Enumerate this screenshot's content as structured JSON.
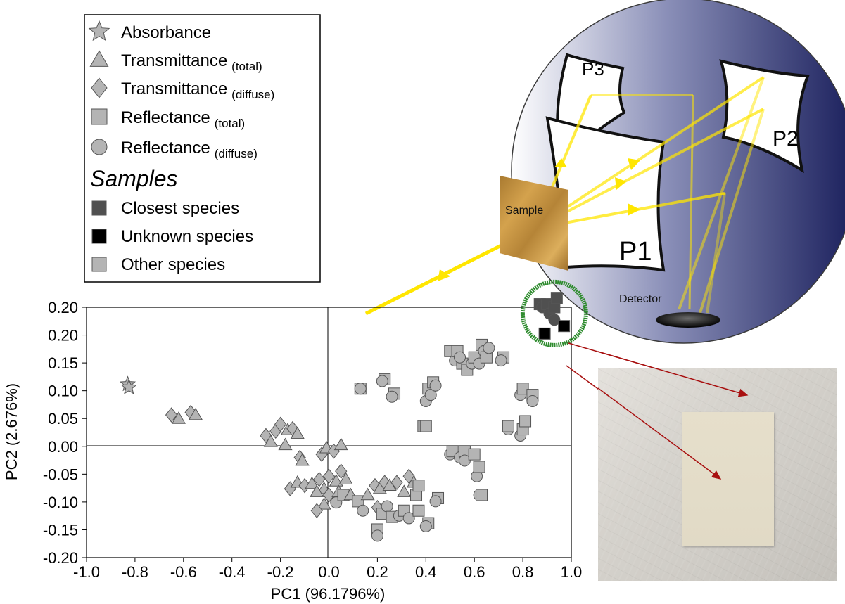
{
  "legend": {
    "techniques": [
      {
        "label": "Absorbance",
        "sub": "",
        "marker": "star"
      },
      {
        "label": "Transmittance",
        "sub": "(total)",
        "marker": "triangle"
      },
      {
        "label": "Transmittance",
        "sub": "(diffuse)",
        "marker": "diamond"
      },
      {
        "label": "Reflectance",
        "sub": "(total)",
        "marker": "square"
      },
      {
        "label": "Reflectance",
        "sub": "(diffuse)",
        "marker": "circle"
      }
    ],
    "samples_title": "Samples",
    "samples": [
      {
        "label": "Closest species",
        "color": "#505050"
      },
      {
        "label": "Unknown species",
        "color": "#000000"
      },
      {
        "label": "Other species",
        "color": "#b4b4b4"
      }
    ]
  },
  "diagram": {
    "mirror_labels": [
      "P3",
      "P2",
      "P1"
    ],
    "sample_label": "Sample",
    "detector_label": "Detector",
    "sphere_colors": [
      "#ffffff",
      "#8a8fb8",
      "#1a1f5c"
    ],
    "beam_color": "#ffe600"
  },
  "chart_data": {
    "type": "scatter",
    "xlabel": "PC1 (96.1796%)",
    "ylabel": "PC2 (2.676%)",
    "xlim": [
      -1.0,
      1.0
    ],
    "ylim": [
      -0.2,
      0.2
    ],
    "x_ticks": [
      "-1.0",
      "-0.8",
      "-0.6",
      "-0.4",
      "-0.2",
      "0.0",
      "0.2",
      "0.4",
      "0.6",
      "0.8",
      "1.0"
    ],
    "y_ticks": [
      "0.20",
      "0.20",
      "0.15",
      "0.10",
      "0.05",
      "0.00",
      "-0.05",
      "-0.10",
      "-0.15",
      "-0.20"
    ],
    "grid": false,
    "zero_lines": true,
    "highlight_circle": {
      "cx": 0.93,
      "cy": 0.19,
      "color": "#2e8b2e"
    },
    "series": [
      {
        "name": "Other species",
        "color": "#b4b4b4",
        "points": [
          {
            "x": -0.83,
            "y": 0.077,
            "m": "star"
          },
          {
            "x": -0.825,
            "y": 0.072,
            "m": "star"
          },
          {
            "x": -0.65,
            "y": 0.028,
            "m": "diamond"
          },
          {
            "x": -0.62,
            "y": 0.022,
            "m": "triangle"
          },
          {
            "x": -0.57,
            "y": 0.032,
            "m": "diamond"
          },
          {
            "x": -0.55,
            "y": 0.028,
            "m": "triangle"
          },
          {
            "x": -0.26,
            "y": -0.005,
            "m": "diamond"
          },
          {
            "x": -0.24,
            "y": -0.015,
            "m": "triangle"
          },
          {
            "x": -0.22,
            "y": 0.002,
            "m": "diamond"
          },
          {
            "x": -0.2,
            "y": 0.013,
            "m": "diamond"
          },
          {
            "x": -0.18,
            "y": -0.02,
            "m": "triangle"
          },
          {
            "x": -0.17,
            "y": 0.004,
            "m": "triangle"
          },
          {
            "x": -0.15,
            "y": 0.006,
            "m": "diamond"
          },
          {
            "x": -0.13,
            "y": -0.002,
            "m": "triangle"
          },
          {
            "x": -0.12,
            "y": -0.04,
            "m": "diamond"
          },
          {
            "x": -0.11,
            "y": -0.045,
            "m": "triangle"
          },
          {
            "x": -0.16,
            "y": -0.09,
            "m": "diamond"
          },
          {
            "x": -0.13,
            "y": -0.08,
            "m": "triangle"
          },
          {
            "x": -0.1,
            "y": -0.085,
            "m": "diamond"
          },
          {
            "x": -0.07,
            "y": -0.082,
            "m": "triangle"
          },
          {
            "x": -0.04,
            "y": -0.075,
            "m": "diamond"
          },
          {
            "x": -0.02,
            "y": -0.09,
            "m": "triangle"
          },
          {
            "x": -0.05,
            "y": -0.095,
            "m": "triangle"
          },
          {
            "x": 0.0,
            "y": -0.07,
            "m": "diamond"
          },
          {
            "x": 0.03,
            "y": -0.078,
            "m": "triangle"
          },
          {
            "x": 0.05,
            "y": -0.062,
            "m": "diamond"
          },
          {
            "x": 0.07,
            "y": -0.075,
            "m": "triangle"
          },
          {
            "x": -0.03,
            "y": -0.035,
            "m": "diamond"
          },
          {
            "x": -0.01,
            "y": -0.025,
            "m": "triangle"
          },
          {
            "x": 0.02,
            "y": -0.03,
            "m": "diamond"
          },
          {
            "x": 0.05,
            "y": -0.02,
            "m": "triangle"
          },
          {
            "x": 0.0,
            "y": -0.1,
            "m": "diamond"
          },
          {
            "x": -0.02,
            "y": -0.115,
            "m": "triangle"
          },
          {
            "x": 0.03,
            "y": -0.112,
            "m": "circle"
          },
          {
            "x": -0.05,
            "y": -0.125,
            "m": "diamond"
          },
          {
            "x": 0.04,
            "y": -0.095,
            "m": "triangle"
          },
          {
            "x": 0.06,
            "y": -0.1,
            "m": "square"
          },
          {
            "x": 0.09,
            "y": -0.1,
            "m": "triangle"
          },
          {
            "x": 0.12,
            "y": -0.11,
            "m": "square"
          },
          {
            "x": 0.14,
            "y": -0.125,
            "m": "circle"
          },
          {
            "x": 0.16,
            "y": -0.1,
            "m": "triangle"
          },
          {
            "x": 0.19,
            "y": -0.085,
            "m": "diamond"
          },
          {
            "x": 0.21,
            "y": -0.09,
            "m": "triangle"
          },
          {
            "x": 0.23,
            "y": -0.08,
            "m": "diamond"
          },
          {
            "x": 0.25,
            "y": -0.085,
            "m": "triangle"
          },
          {
            "x": 0.28,
            "y": -0.08,
            "m": "diamond"
          },
          {
            "x": 0.31,
            "y": -0.095,
            "m": "triangle"
          },
          {
            "x": 0.33,
            "y": -0.07,
            "m": "diamond"
          },
          {
            "x": 0.35,
            "y": -0.08,
            "m": "triangle"
          },
          {
            "x": 0.36,
            "y": -0.1,
            "m": "square"
          },
          {
            "x": 0.37,
            "y": -0.085,
            "m": "square"
          },
          {
            "x": 0.2,
            "y": -0.12,
            "m": "diamond"
          },
          {
            "x": 0.22,
            "y": -0.13,
            "m": "square"
          },
          {
            "x": 0.24,
            "y": -0.118,
            "m": "circle"
          },
          {
            "x": 0.26,
            "y": -0.135,
            "m": "square"
          },
          {
            "x": 0.29,
            "y": -0.133,
            "m": "circle"
          },
          {
            "x": 0.31,
            "y": -0.125,
            "m": "square"
          },
          {
            "x": 0.33,
            "y": -0.137,
            "m": "circle"
          },
          {
            "x": 0.37,
            "y": -0.125,
            "m": "square"
          },
          {
            "x": 0.2,
            "y": -0.155,
            "m": "square"
          },
          {
            "x": 0.2,
            "y": -0.165,
            "m": "circle"
          },
          {
            "x": 0.41,
            "y": -0.145,
            "m": "square"
          },
          {
            "x": 0.4,
            "y": -0.15,
            "m": "circle"
          },
          {
            "x": 0.45,
            "y": -0.105,
            "m": "square"
          },
          {
            "x": 0.44,
            "y": -0.11,
            "m": "circle"
          },
          {
            "x": 0.13,
            "y": 0.07,
            "m": "square"
          },
          {
            "x": 0.13,
            "y": 0.07,
            "m": "circle"
          },
          {
            "x": 0.23,
            "y": 0.085,
            "m": "square"
          },
          {
            "x": 0.22,
            "y": 0.082,
            "m": "circle"
          },
          {
            "x": 0.27,
            "y": 0.062,
            "m": "square"
          },
          {
            "x": 0.26,
            "y": 0.057,
            "m": "circle"
          },
          {
            "x": 0.39,
            "y": 0.01,
            "m": "square"
          },
          {
            "x": 0.4,
            "y": 0.01,
            "m": "square"
          },
          {
            "x": 0.41,
            "y": 0.07,
            "m": "square"
          },
          {
            "x": 0.4,
            "y": 0.05,
            "m": "circle"
          },
          {
            "x": 0.42,
            "y": 0.06,
            "m": "circle"
          },
          {
            "x": 0.43,
            "y": 0.08,
            "m": "square"
          },
          {
            "x": 0.44,
            "y": 0.075,
            "m": "circle"
          },
          {
            "x": 0.5,
            "y": 0.13,
            "m": "square"
          },
          {
            "x": 0.52,
            "y": 0.115,
            "m": "circle"
          },
          {
            "x": 0.53,
            "y": 0.13,
            "m": "square"
          },
          {
            "x": 0.55,
            "y": 0.11,
            "m": "square"
          },
          {
            "x": 0.54,
            "y": 0.12,
            "m": "circle"
          },
          {
            "x": 0.57,
            "y": 0.1,
            "m": "square"
          },
          {
            "x": 0.59,
            "y": 0.11,
            "m": "circle"
          },
          {
            "x": 0.6,
            "y": 0.12,
            "m": "square"
          },
          {
            "x": 0.63,
            "y": 0.14,
            "m": "square"
          },
          {
            "x": 0.62,
            "y": 0.11,
            "m": "circle"
          },
          {
            "x": 0.64,
            "y": 0.13,
            "m": "circle"
          },
          {
            "x": 0.65,
            "y": 0.12,
            "m": "square"
          },
          {
            "x": 0.66,
            "y": 0.135,
            "m": "circle"
          },
          {
            "x": 0.72,
            "y": 0.12,
            "m": "square"
          },
          {
            "x": 0.71,
            "y": 0.115,
            "m": "circle"
          },
          {
            "x": 0.5,
            "y": -0.035,
            "m": "circle"
          },
          {
            "x": 0.51,
            "y": -0.03,
            "m": "square"
          },
          {
            "x": 0.54,
            "y": -0.04,
            "m": "circle"
          },
          {
            "x": 0.56,
            "y": -0.03,
            "m": "square"
          },
          {
            "x": 0.56,
            "y": -0.045,
            "m": "circle"
          },
          {
            "x": 0.6,
            "y": -0.035,
            "m": "square"
          },
          {
            "x": 0.61,
            "y": -0.07,
            "m": "circle"
          },
          {
            "x": 0.62,
            "y": -0.055,
            "m": "square"
          },
          {
            "x": 0.62,
            "y": -0.1,
            "m": "circle"
          },
          {
            "x": 0.63,
            "y": -0.1,
            "m": "square"
          },
          {
            "x": 0.74,
            "y": 0.005,
            "m": "circle"
          },
          {
            "x": 0.74,
            "y": 0.01,
            "m": "square"
          },
          {
            "x": 0.79,
            "y": -0.005,
            "m": "circle"
          },
          {
            "x": 0.8,
            "y": 0.005,
            "m": "square"
          },
          {
            "x": 0.81,
            "y": 0.018,
            "m": "square"
          },
          {
            "x": 0.79,
            "y": 0.06,
            "m": "circle"
          },
          {
            "x": 0.8,
            "y": 0.07,
            "m": "square"
          },
          {
            "x": 0.84,
            "y": 0.06,
            "m": "square"
          },
          {
            "x": 0.84,
            "y": 0.05,
            "m": "circle"
          }
        ]
      },
      {
        "name": "Closest species",
        "color": "#505050",
        "points": [
          {
            "x": 0.87,
            "y": 0.205,
            "m": "square"
          },
          {
            "x": 0.88,
            "y": 0.2,
            "m": "circle"
          },
          {
            "x": 0.9,
            "y": 0.205,
            "m": "square"
          },
          {
            "x": 0.91,
            "y": 0.19,
            "m": "circle"
          },
          {
            "x": 0.93,
            "y": 0.2,
            "m": "square"
          },
          {
            "x": 0.94,
            "y": 0.215,
            "m": "square"
          },
          {
            "x": 0.93,
            "y": 0.18,
            "m": "circle"
          }
        ]
      },
      {
        "name": "Unknown species",
        "color": "#000000",
        "points": [
          {
            "x": 0.89,
            "y": 0.158,
            "m": "square"
          },
          {
            "x": 0.97,
            "y": 0.17,
            "m": "square"
          }
        ]
      }
    ]
  }
}
